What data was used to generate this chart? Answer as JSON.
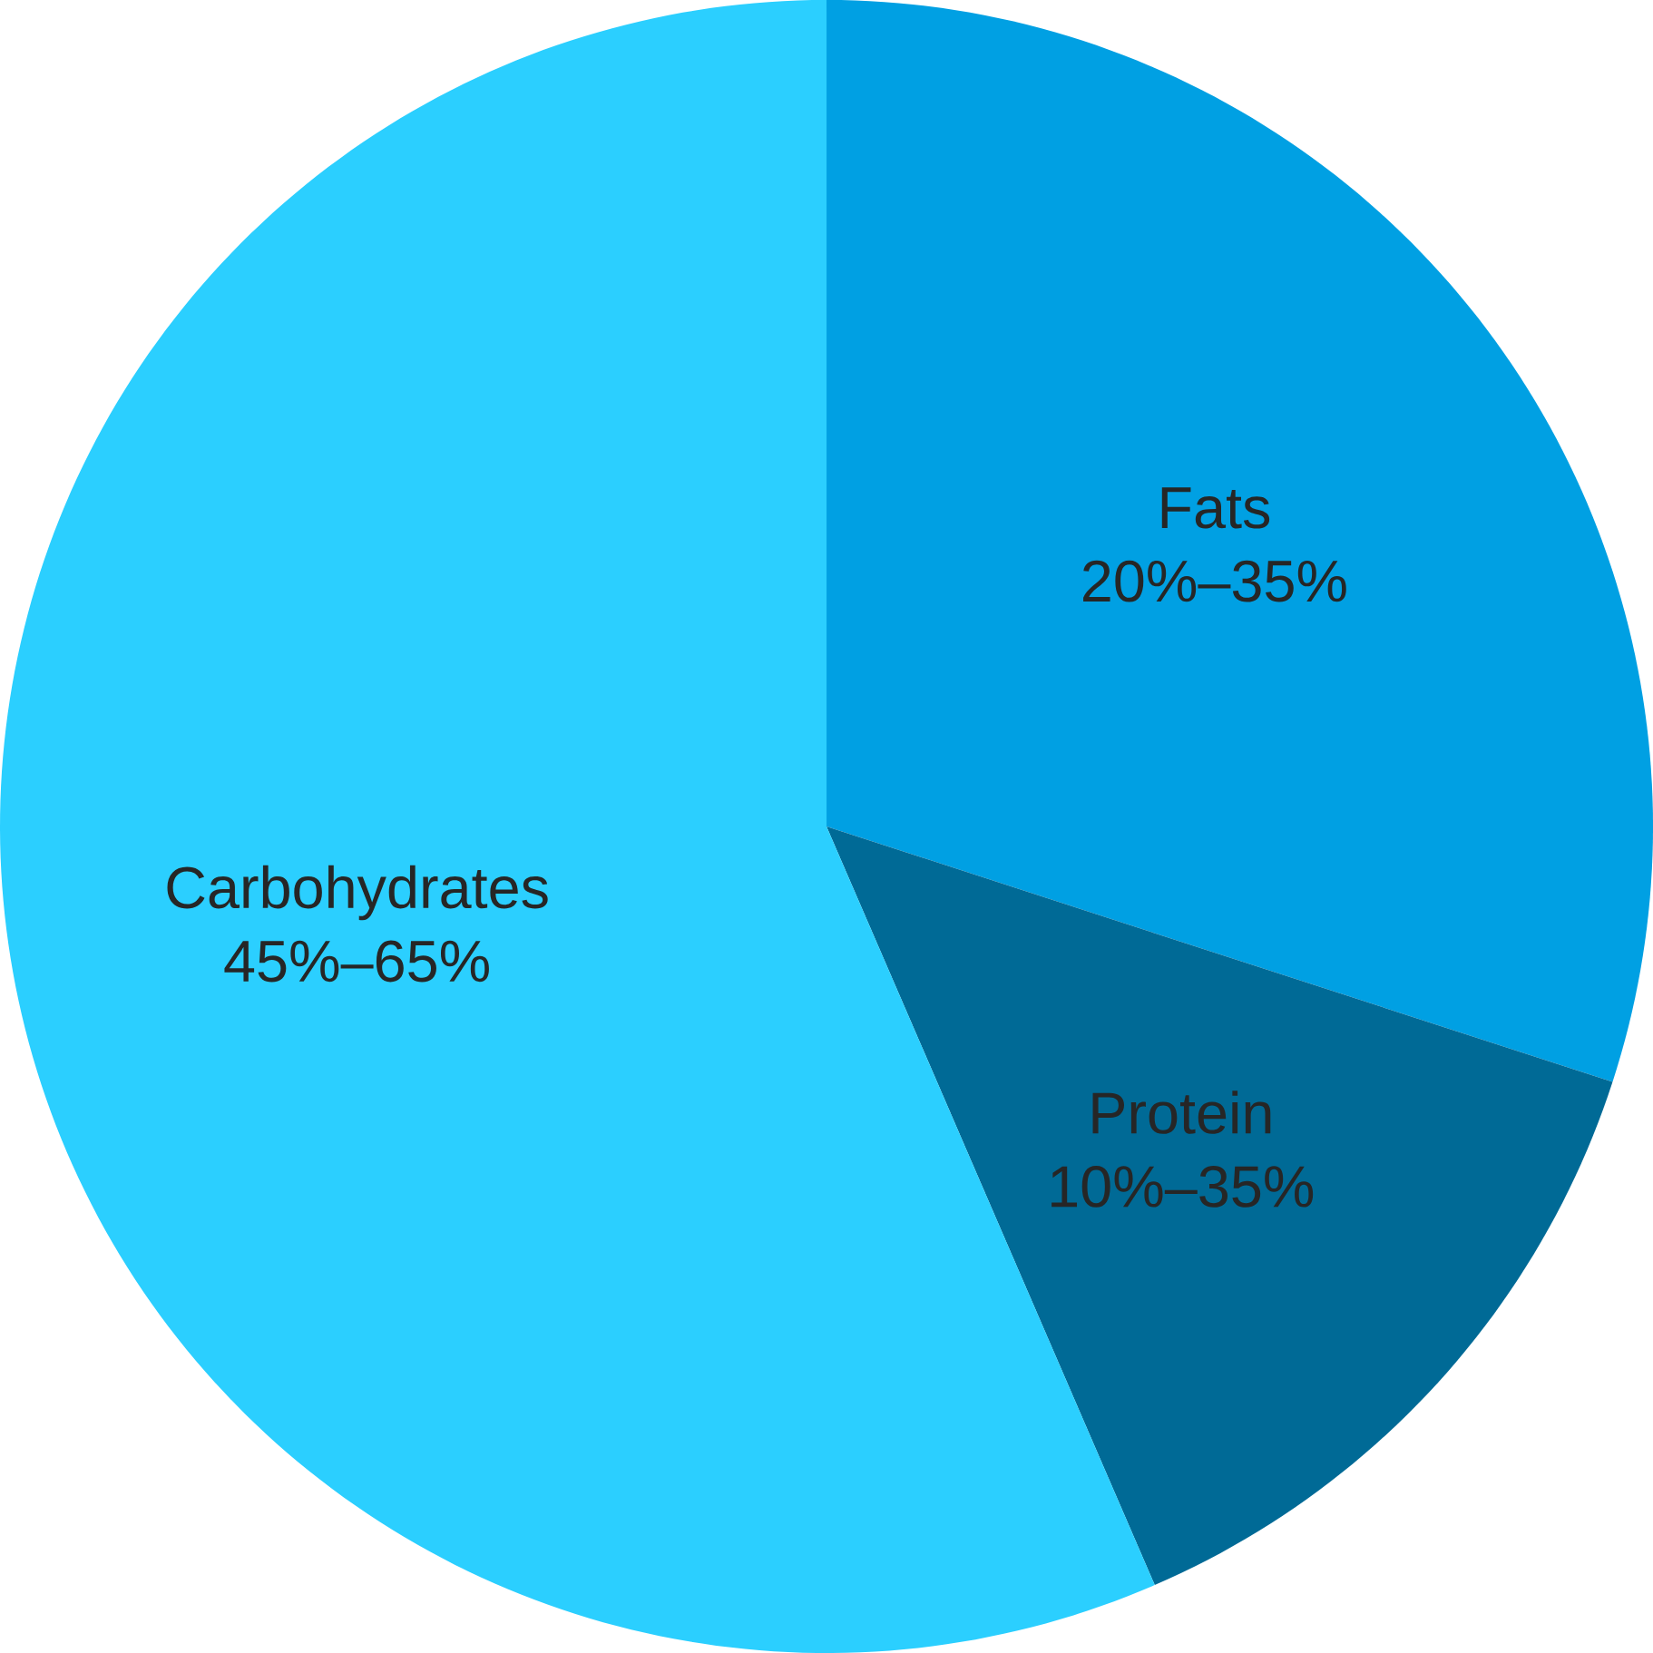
{
  "chart_data": {
    "type": "pie",
    "categories": [
      "Fats",
      "Protein",
      "Carbohydrates"
    ],
    "values": [
      30,
      13.5,
      56.5
    ],
    "annotations": [
      "20%–35%",
      "10%–35%",
      "45%–65%"
    ],
    "colors": [
      "#00a0e3",
      "#006a96",
      "#2bcfff"
    ]
  }
}
